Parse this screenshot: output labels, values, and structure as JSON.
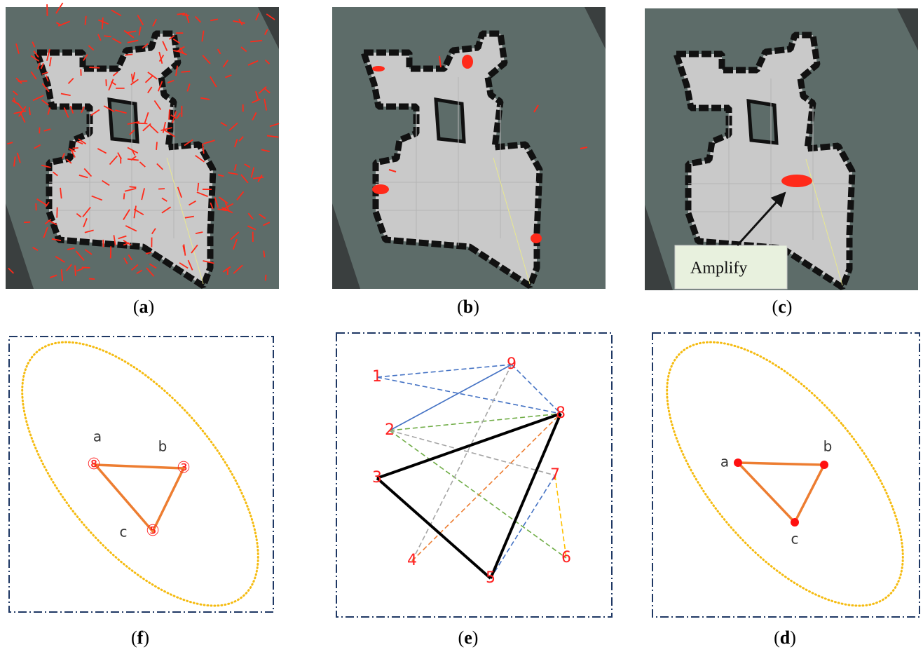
{
  "figure": {
    "panels": [
      {
        "caption": "(a)"
      },
      {
        "caption": "(b)"
      },
      {
        "caption": "(c)",
        "annotation": "Amplify"
      },
      {
        "caption": "(f)",
        "vertex_labels": [
          "a",
          "b",
          "c"
        ],
        "node_labels": [
          "⑧",
          "③",
          "⑤"
        ]
      },
      {
        "caption": "(e)",
        "node_labels": [
          "1",
          "2",
          "3",
          "4",
          "5",
          "6",
          "7",
          "8",
          "9"
        ]
      },
      {
        "caption": "(d)",
        "vertex_labels": [
          "a",
          "b",
          "c"
        ]
      }
    ]
  }
}
